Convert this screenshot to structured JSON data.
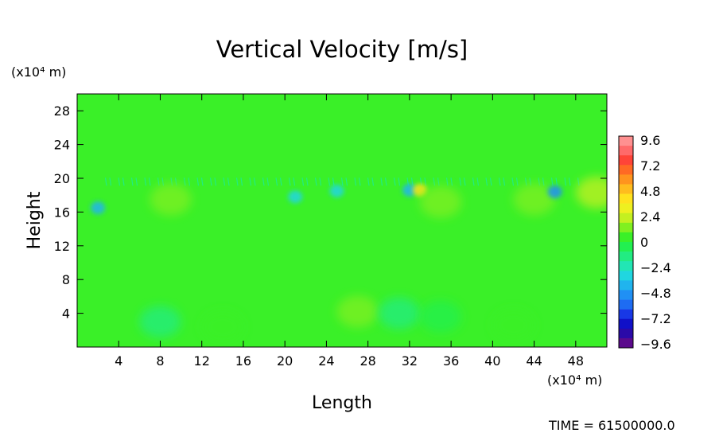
{
  "chart_data": {
    "type": "heatmap",
    "title": "Vertical Velocity [m/s]",
    "xlabel": "Length",
    "ylabel": "Height",
    "x_unit": "(x10⁴ m)",
    "y_unit": "(x10⁴ m)",
    "x_ticks": [
      4,
      8,
      12,
      16,
      20,
      24,
      28,
      32,
      36,
      40,
      44,
      48
    ],
    "y_ticks": [
      4,
      8,
      12,
      16,
      20,
      24,
      28
    ],
    "xlim": [
      0,
      51
    ],
    "ylim": [
      0,
      30
    ],
    "colorbar": {
      "tick_labels": [
        "9.6",
        "7.2",
        "4.8",
        "2.4",
        "0",
        "−2.4",
        "−4.8",
        "−7.2",
        "−9.6"
      ],
      "vmin": -10.8,
      "vmax": 10.8,
      "colors": [
        "#5b0a8c",
        "#2a0aa8",
        "#1010c8",
        "#1838e6",
        "#1e6cf2",
        "#2090f4",
        "#20b4ee",
        "#20d6e0",
        "#22e6b4",
        "#22ec82",
        "#22f050",
        "#3af028",
        "#80f020",
        "#c4f020",
        "#eef020",
        "#ffe21e",
        "#ffbc1e",
        "#ff941e",
        "#ff6a24",
        "#ff4438",
        "#ff6a6a",
        "#ff9090"
      ],
      "legend_position": "right"
    },
    "background_value": 0,
    "features": [
      {
        "x": 2,
        "y": 16.5,
        "value": -4.5
      },
      {
        "x": 9,
        "y": 17.5,
        "value": 1.2
      },
      {
        "x": 21,
        "y": 17.8,
        "value": -3.2
      },
      {
        "x": 25,
        "y": 18.5,
        "value": -3.8
      },
      {
        "x": 32,
        "y": 18.6,
        "value": -4.6
      },
      {
        "x": 33,
        "y": 18.6,
        "value": 4.2
      },
      {
        "x": 35,
        "y": 17.2,
        "value": 1.5
      },
      {
        "x": 44,
        "y": 17.5,
        "value": 1.2
      },
      {
        "x": 46,
        "y": 18.4,
        "value": -5.2
      },
      {
        "x": 50,
        "y": 18.3,
        "value": 2.5
      },
      {
        "x": 8,
        "y": 3,
        "value": -1.2
      },
      {
        "x": 14,
        "y": 2.4,
        "value": 0.8
      },
      {
        "x": 27,
        "y": 4.2,
        "value": 1.6
      },
      {
        "x": 31,
        "y": 4,
        "value": -1.4
      },
      {
        "x": 35,
        "y": 3.6,
        "value": -0.8
      },
      {
        "x": 42,
        "y": 2.6,
        "value": 0.6
      }
    ]
  },
  "footer": {
    "time_label": "TIME = 61500000.0"
  }
}
